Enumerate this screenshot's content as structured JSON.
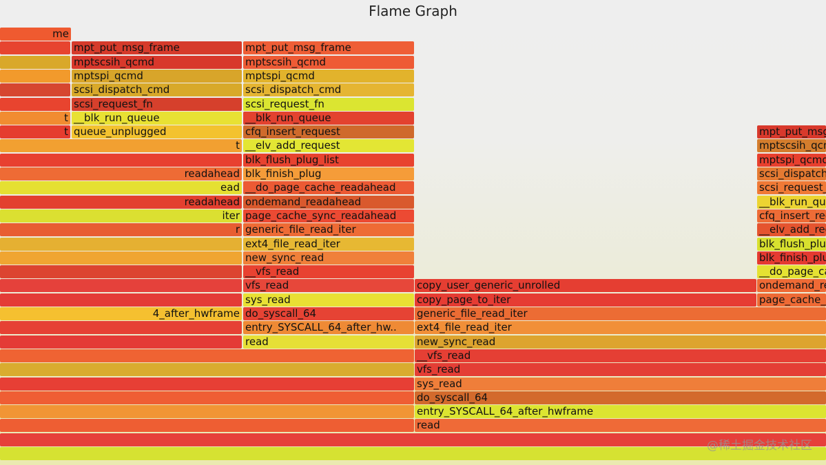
{
  "title": "Flame Graph",
  "watermark": "@稀土掘金技术社区",
  "frames": [
    {
      "label": "me",
      "color": "#ef5a30"
    },
    {
      "label": "",
      "color": "#e74430"
    },
    {
      "label": "mpt_put_msg_frame",
      "color": "#d63b2b"
    },
    {
      "label": "mpt_put_msg_frame",
      "color": "#ef5e36"
    },
    {
      "label": "",
      "color": "#d9a82a"
    },
    {
      "label": "mptscsih_qcmd",
      "color": "#d8382b"
    },
    {
      "label": "mptscsih_qcmd",
      "color": "#ee5b35"
    },
    {
      "label": "",
      "color": "#f29a2c"
    },
    {
      "label": "mptspi_qcmd",
      "color": "#d8a52a"
    },
    {
      "label": "mptspi_qcmd",
      "color": "#e2b32c"
    },
    {
      "label": "",
      "color": "#d64630"
    },
    {
      "label": "scsi_dispatch_cmd",
      "color": "#d8a92a"
    },
    {
      "label": "scsi_dispatch_cmd",
      "color": "#e5b532"
    },
    {
      "label": "",
      "color": "#e8442f"
    },
    {
      "label": "scsi_request_fn",
      "color": "#d6402c"
    },
    {
      "label": "scsi_request_fn",
      "color": "#dbe531"
    },
    {
      "label": "t",
      "color": "#f18c31"
    },
    {
      "label": "__blk_run_queue",
      "color": "#e8e133"
    },
    {
      "label": "__blk_run_queue",
      "color": "#e3422f"
    },
    {
      "label": "t",
      "color": "#e53d2f"
    },
    {
      "label": "queue_unplugged",
      "color": "#f3c22f"
    },
    {
      "label": "cfq_insert_request",
      "color": "#cf6a2c"
    },
    {
      "label": "mpt_put_msg_frame",
      "color": "#d8392c"
    },
    {
      "label": "t",
      "color": "#f2a031"
    },
    {
      "label": "__elv_add_request",
      "color": "#e3e634"
    },
    {
      "label": "mptscsih_qcmd",
      "color": "#d47d2d"
    },
    {
      "label": "",
      "color": "#e84030"
    },
    {
      "label": "blk_flush_plug_list",
      "color": "#e8432f"
    },
    {
      "label": "mptspi_qcmd",
      "color": "#e8402e"
    },
    {
      "label": "readahead",
      "color": "#ee6b35"
    },
    {
      "label": "blk_finish_plug",
      "color": "#f59c39"
    },
    {
      "label": "scsi_dispatch_cmd",
      "color": "#e57a32"
    },
    {
      "label": "ead",
      "color": "#e5e032"
    },
    {
      "label": "__do_page_cache_readahead",
      "color": "#ec5a34"
    },
    {
      "label": "scsi_request_fn",
      "color": "#f07a36"
    },
    {
      "label": "readahead",
      "color": "#e3402f"
    },
    {
      "label": "ondemand_readahead",
      "color": "#d9592d"
    },
    {
      "label": "__blk_run_queue",
      "color": "#ecd432"
    },
    {
      "label": "iter",
      "color": "#dbe031"
    },
    {
      "label": "page_cache_sync_readahead",
      "color": "#ec4a33"
    },
    {
      "label": "cfq_insert_request",
      "color": "#ee6c36"
    },
    {
      "label": "r",
      "color": "#e85d32"
    },
    {
      "label": "generic_file_read_iter",
      "color": "#ee6b35"
    },
    {
      "label": "__elv_add_request",
      "color": "#e5542f"
    },
    {
      "label": "",
      "color": "#e5b032"
    },
    {
      "label": "ext4_file_read_iter",
      "color": "#e7b833"
    },
    {
      "label": "blk_flush_plug_list",
      "color": "#d8e02f"
    },
    {
      "label": "",
      "color": "#f0a532"
    },
    {
      "label": "new_sync_read",
      "color": "#f0803a"
    },
    {
      "label": "blk_finish_plug",
      "color": "#e53a31"
    },
    {
      "label": "",
      "color": "#dc4430"
    },
    {
      "label": "__vfs_read",
      "color": "#e84231"
    },
    {
      "label": "__do_page_cache_readahead",
      "color": "#e5e232"
    },
    {
      "label": "",
      "color": "#e5413b"
    },
    {
      "label": "vfs_read",
      "color": "#e7473a"
    },
    {
      "label": "copy_user_generic_unrolled",
      "color": "#e53e32"
    },
    {
      "label": "ondemand_readahead",
      "color": "#ef6a35"
    },
    {
      "label": "",
      "color": "#e43b36"
    },
    {
      "label": "sys_read",
      "color": "#e9e034"
    },
    {
      "label": "copy_page_to_iter",
      "color": "#e63c33"
    },
    {
      "label": "page_cache_sync_readahead",
      "color": "#ee6a35"
    },
    {
      "label": "4_after_hwframe",
      "color": "#f5c030"
    },
    {
      "label": "do_syscall_64",
      "color": "#e64334"
    },
    {
      "label": "generic_file_read_iter",
      "color": "#ec6c34"
    },
    {
      "label": "",
      "color": "#e64134"
    },
    {
      "label": "entry_SYSCALL_64_after_hw..",
      "color": "#ef8a35"
    },
    {
      "label": "ext4_file_read_iter",
      "color": "#f18f38"
    },
    {
      "label": "",
      "color": "#e43b36"
    },
    {
      "label": "read",
      "color": "#e6df36"
    },
    {
      "label": "new_sync_read",
      "color": "#dda42f"
    },
    {
      "label": "",
      "color": "#ef6333"
    },
    {
      "label": "__vfs_read",
      "color": "#e53f34"
    },
    {
      "label": "",
      "color": "#d9ac2f"
    },
    {
      "label": "vfs_read",
      "color": "#e43e35"
    },
    {
      "label": "",
      "color": "#e73f35"
    },
    {
      "label": "sys_read",
      "color": "#ef7e3a"
    },
    {
      "label": "",
      "color": "#ef5e34"
    },
    {
      "label": "do_syscall_64",
      "color": "#d36a2c"
    },
    {
      "label": "",
      "color": "#f19535"
    },
    {
      "label": "entry_SYSCALL_64_after_hwframe",
      "color": "#dce431"
    },
    {
      "label": "",
      "color": "#ee5e33"
    },
    {
      "label": "read",
      "color": "#ef6a37"
    },
    {
      "label": "",
      "color": "#e6403a"
    },
    {
      "label": "",
      "color": "#d6e232"
    }
  ]
}
